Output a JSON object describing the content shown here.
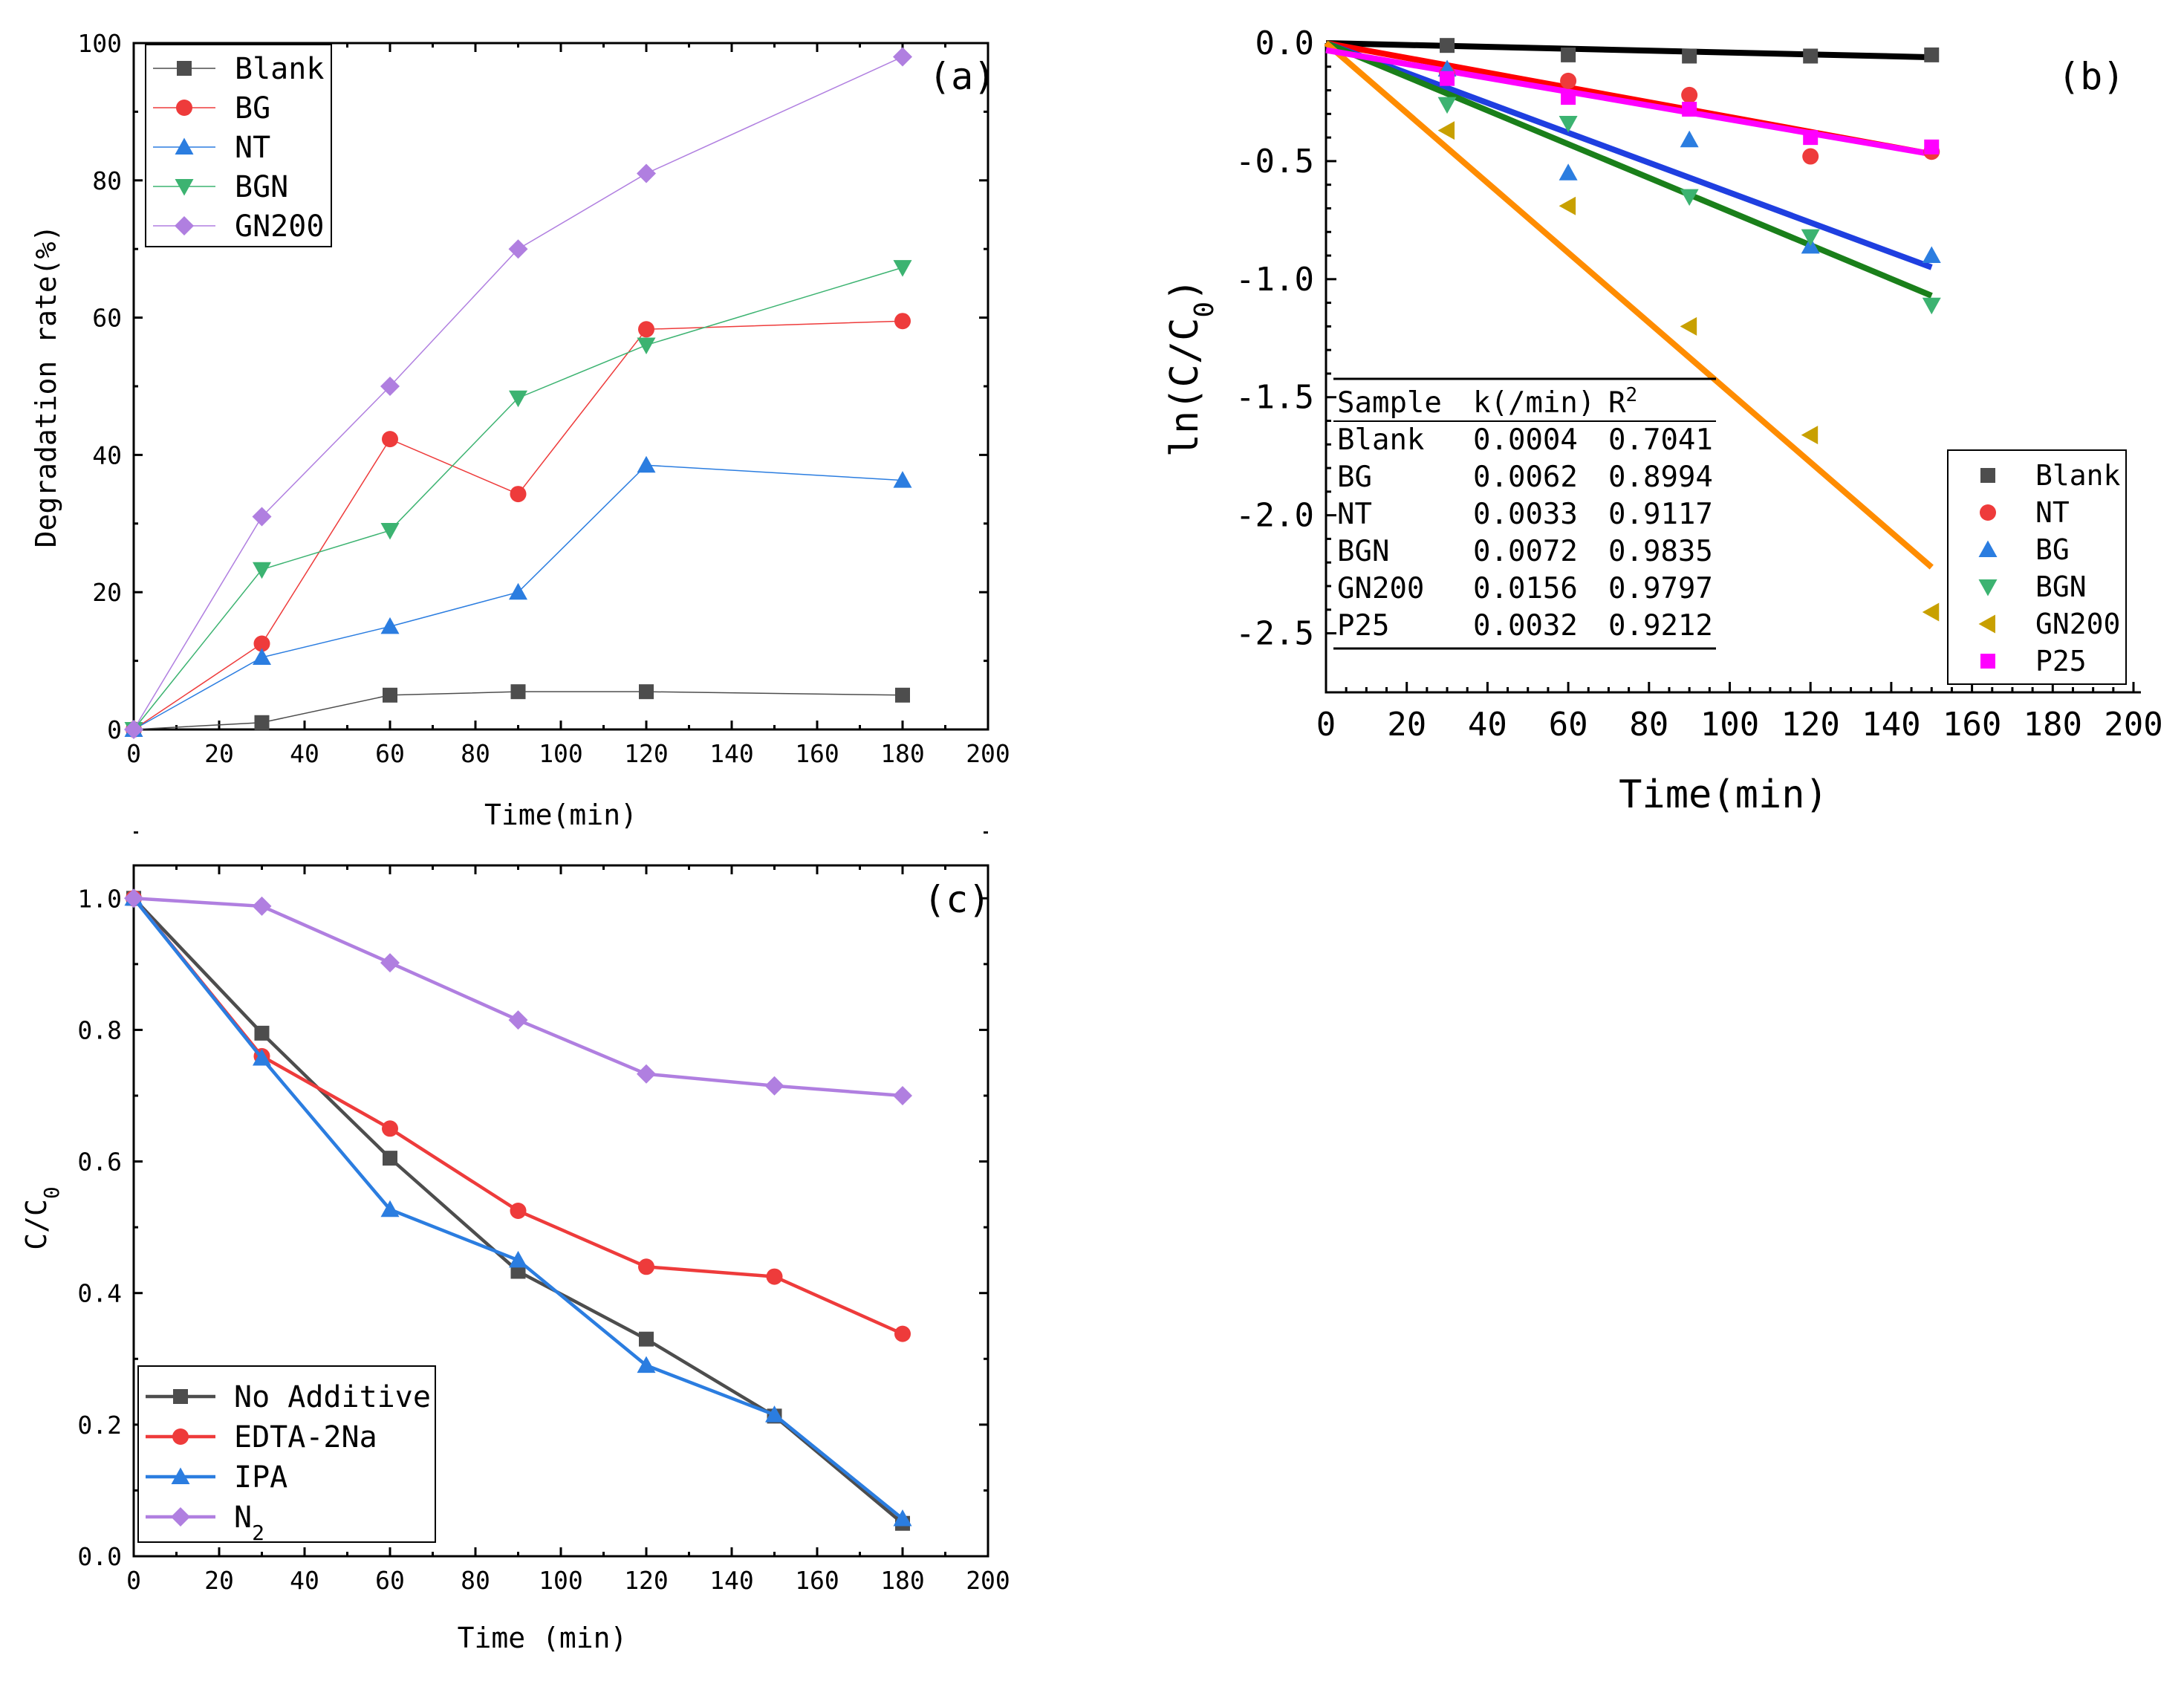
{
  "chart_data": [
    {
      "panel": "(a)",
      "type": "line",
      "xlabel": "Time(min)",
      "ylabel": "Degradation rate(%)",
      "xlim": [
        0,
        200
      ],
      "ylim": [
        0,
        100
      ],
      "xticks": [
        0,
        20,
        40,
        60,
        80,
        100,
        120,
        140,
        160,
        180,
        200
      ],
      "yticks": [
        0,
        20,
        40,
        60,
        80,
        100
      ],
      "legend_position": "top-left",
      "series": [
        {
          "name": "Blank",
          "color": "#4d4d4d",
          "marker": "square",
          "x": [
            0,
            30,
            60,
            90,
            120,
            180
          ],
          "values": [
            0,
            1,
            5,
            5.5,
            5.5,
            5
          ]
        },
        {
          "name": "BG",
          "color": "#ee3b3b",
          "marker": "circle",
          "x": [
            0,
            30,
            60,
            90,
            120,
            180
          ],
          "values": [
            0,
            12.5,
            42.3,
            34.3,
            58.3,
            59.5
          ]
        },
        {
          "name": "NT",
          "color": "#2b7de0",
          "marker": "triangle-up",
          "x": [
            0,
            30,
            60,
            90,
            120,
            180
          ],
          "values": [
            0,
            10.5,
            15,
            20,
            38.5,
            36.3
          ]
        },
        {
          "name": "BGN",
          "color": "#3cb371",
          "marker": "triangle-down",
          "x": [
            0,
            30,
            60,
            90,
            120,
            180
          ],
          "values": [
            0,
            23.3,
            29,
            48.3,
            56,
            67.3
          ]
        },
        {
          "name": "GN200",
          "color": "#b07fe0",
          "marker": "diamond",
          "x": [
            0,
            30,
            60,
            90,
            120,
            180
          ],
          "values": [
            0,
            31,
            50,
            70,
            81,
            98
          ]
        }
      ]
    },
    {
      "panel": "(b)",
      "type": "scatter",
      "xlabel": "Time(min)",
      "ylabel_main": "ln(C/C",
      "ylabel_sub": "0",
      "ylabel_close": ")",
      "xlim": [
        0,
        200
      ],
      "ylim": [
        -2.75,
        0
      ],
      "xticks": [
        0,
        20,
        40,
        60,
        80,
        100,
        120,
        140,
        160,
        180,
        200
      ],
      "yticks": [
        0.0,
        -0.5,
        -1.0,
        -1.5,
        -2.0,
        -2.5
      ],
      "ytick_labels": [
        "0.0",
        "-0.5",
        "-1.0",
        "-1.5",
        "-2.0",
        "-2.5"
      ],
      "legend_position": "bottom-right",
      "series": [
        {
          "name": "Blank",
          "color": "#4d4d4d",
          "line_color": "#000000",
          "marker": "square",
          "x": [
            0,
            30,
            60,
            90,
            120,
            150
          ],
          "values": [
            0,
            -0.01,
            -0.05,
            -0.055,
            -0.055,
            -0.05
          ],
          "fit": [
            0,
            -0.06
          ]
        },
        {
          "name": "NT",
          "color": "#ee3b3b",
          "line_color": "#ff0000",
          "marker": "circle",
          "x": [
            0,
            30,
            60,
            90,
            120,
            150
          ],
          "values": [
            0,
            -0.13,
            -0.16,
            -0.22,
            -0.48,
            -0.46
          ],
          "fit": [
            0,
            -0.47
          ]
        },
        {
          "name": "BG",
          "color": "#2b7de0",
          "line_color": "#1f3fe0",
          "marker": "triangle-up",
          "x": [
            0,
            30,
            60,
            90,
            120,
            150
          ],
          "values": [
            0,
            -0.11,
            -0.55,
            -0.41,
            -0.86,
            -0.9
          ],
          "fit": [
            0,
            -0.95
          ]
        },
        {
          "name": "BGN",
          "color": "#3cb371",
          "line_color": "#1a7f1a",
          "marker": "triangle-down",
          "x": [
            0,
            30,
            60,
            90,
            120,
            150
          ],
          "values": [
            0,
            -0.26,
            -0.34,
            -0.65,
            -0.82,
            -1.11
          ],
          "fit": [
            0,
            -1.07
          ]
        },
        {
          "name": "GN200",
          "color": "#c8a000",
          "line_color": "#ff8c00",
          "marker": "triangle-left",
          "x": [
            0,
            30,
            60,
            90,
            120,
            150
          ],
          "values": [
            0,
            -0.37,
            -0.69,
            -1.2,
            -1.66,
            -2.41
          ],
          "fit": [
            0,
            -2.22
          ]
        },
        {
          "name": "P25",
          "color": "#ff00ff",
          "line_color": "#ff00ff",
          "marker": "square",
          "x": [
            0,
            30,
            60,
            90,
            120,
            150
          ],
          "values": [
            -0.03,
            -0.15,
            -0.23,
            -0.28,
            -0.4,
            -0.44
          ],
          "fit": [
            -0.03,
            -0.47
          ]
        }
      ],
      "table": {
        "headers": [
          "Sample",
          "k(/min)",
          "R",
          "2"
        ],
        "rows": [
          [
            "Blank",
            "0.0004",
            "0.7041"
          ],
          [
            "BG",
            "0.0062",
            "0.8994"
          ],
          [
            "NT",
            "0.0033",
            "0.9117"
          ],
          [
            "BGN",
            "0.0072",
            "0.9835"
          ],
          [
            "GN200",
            "0.0156",
            "0.9797"
          ],
          [
            "P25",
            "0.0032",
            "0.9212"
          ]
        ]
      }
    },
    {
      "panel": "(c)",
      "type": "line",
      "xlabel": "Time (min)",
      "ylabel_main": "C/C",
      "ylabel_sub": "0",
      "xlim": [
        0,
        200
      ],
      "ylim": [
        0,
        1.05
      ],
      "xticks": [
        0,
        20,
        40,
        60,
        80,
        100,
        120,
        140,
        160,
        180,
        200
      ],
      "yticks": [
        0.0,
        0.2,
        0.4,
        0.6,
        0.8,
        1.0
      ],
      "ytick_labels": [
        "0.0",
        "0.2",
        "0.4",
        "0.6",
        "0.8",
        "1.0"
      ],
      "legend_position": "bottom-left",
      "series": [
        {
          "name": "No Additive",
          "color": "#4d4d4d",
          "marker": "square",
          "x": [
            0,
            30,
            60,
            90,
            120,
            150,
            180
          ],
          "values": [
            1.0,
            0.795,
            0.605,
            0.433,
            0.33,
            0.213,
            0.05
          ]
        },
        {
          "name": "EDTA-2Na",
          "color": "#ee3b3b",
          "marker": "circle",
          "x": [
            0,
            30,
            60,
            90,
            120,
            150,
            180
          ],
          "values": [
            1.0,
            0.76,
            0.65,
            0.525,
            0.44,
            0.425,
            0.338
          ]
        },
        {
          "name": "IPA",
          "color": "#2b7de0",
          "marker": "triangle-up",
          "x": [
            0,
            30,
            60,
            90,
            120,
            150,
            180
          ],
          "values": [
            1.0,
            0.757,
            0.527,
            0.45,
            0.29,
            0.215,
            0.057
          ]
        },
        {
          "name": "N",
          "name_sub": "2",
          "color": "#b07fe0",
          "marker": "diamond",
          "x": [
            0,
            30,
            60,
            90,
            120,
            150,
            180
          ],
          "values": [
            1.0,
            0.988,
            0.902,
            0.815,
            0.733,
            0.715,
            0.7
          ]
        }
      ]
    }
  ]
}
